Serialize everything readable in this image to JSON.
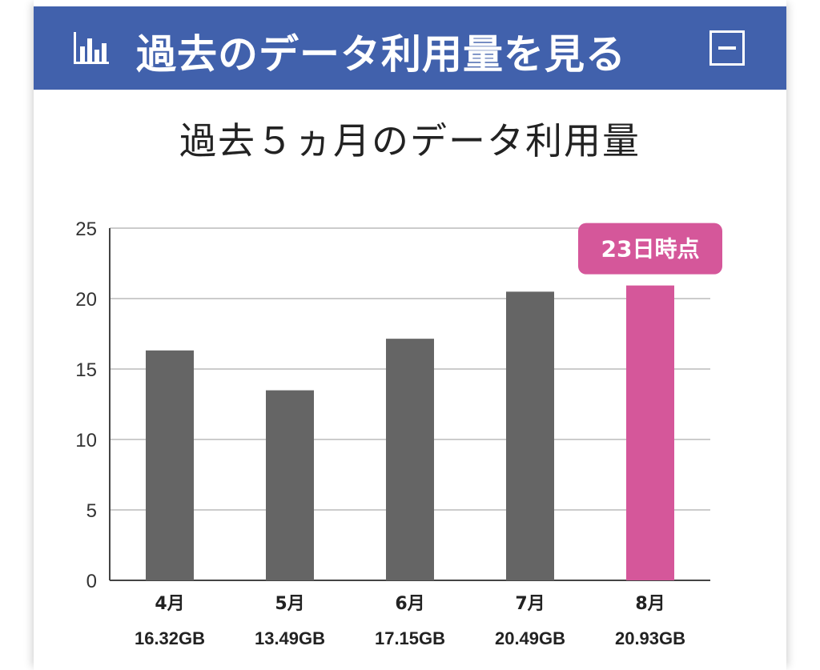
{
  "header": {
    "title": "過去のデータ利用量を見る",
    "icon": "bar-chart-icon",
    "collapse_icon": "minus-icon",
    "background_color": "#4161ac"
  },
  "chart_data": {
    "type": "bar",
    "title": "過去５ヵ月のデータ利用量",
    "categories": [
      "4月",
      "5月",
      "6月",
      "7月",
      "8月"
    ],
    "values": [
      16.32,
      13.49,
      17.15,
      20.49,
      20.93
    ],
    "value_labels": [
      "16.32GB",
      "13.49GB",
      "17.15GB",
      "20.49GB",
      "20.93GB"
    ],
    "yticks": [
      "0",
      "5",
      "10",
      "15",
      "20",
      "25"
    ],
    "ylim": [
      0,
      25
    ],
    "grid": true,
    "highlight_index": 4,
    "highlight_label": "23日時点",
    "colors": {
      "bar": "#656565",
      "highlight": "#d5579a",
      "grid": "#cccccc"
    }
  }
}
